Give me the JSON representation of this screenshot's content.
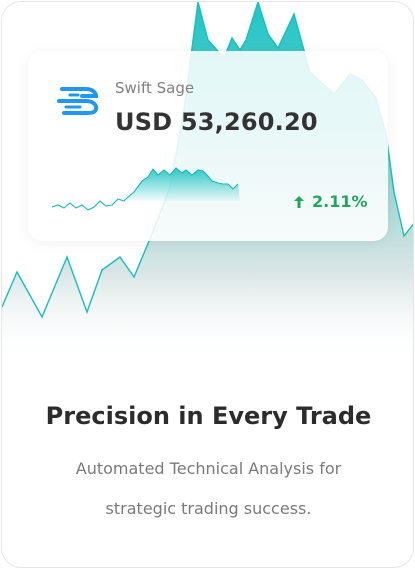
{
  "widget": {
    "brand": "Swift Sage",
    "price": "USD 53,260.20",
    "change": "2.11%",
    "logo_icon": "swift-sage-logo",
    "accent_color": "#1fbfc4",
    "logo_color": "#2196f3",
    "positive_color": "#22a55d"
  },
  "headline": "Precision in Every Trade",
  "subtitle_line1": "Automated Technical Analysis for",
  "subtitle_line2": "strategic trading success."
}
